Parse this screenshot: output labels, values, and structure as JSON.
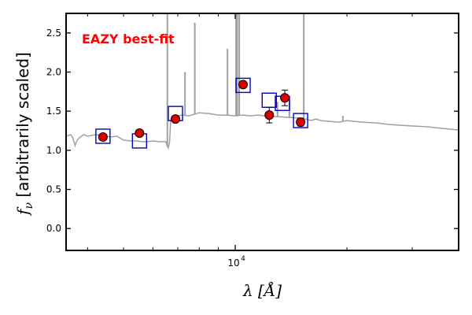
{
  "chart_data": {
    "type": "scatter",
    "title": "",
    "annotation": {
      "text": "EAZY best-fit",
      "color": "#ff0000"
    },
    "xlabel": {
      "main": "λ",
      "unit": "[Å]"
    },
    "ylabel": {
      "main": "f",
      "sub": "ν",
      "rest": " [arbitrarily scaled]"
    },
    "x_scale": "log",
    "xlim": [
      3500,
      40000
    ],
    "ylim": [
      -0.28,
      2.75
    ],
    "y_ticks": [
      0.0,
      0.5,
      1.0,
      1.5,
      2.0,
      2.5
    ],
    "y_tick_labels": [
      "0.0",
      "0.5",
      "1.0",
      "1.5",
      "2.0",
      "2.5"
    ],
    "x_ticks": [
      10000
    ],
    "x_tick_labels": [
      {
        "base": "10",
        "exp": "4"
      }
    ],
    "x_minor_ticks": [
      4000,
      5000,
      6000,
      7000,
      8000,
      9000,
      20000,
      30000,
      40000
    ],
    "grid": false,
    "colors": {
      "model": "#a0a0a0",
      "observed_fill": "#dd0000",
      "observed_edge": "#000000",
      "model_box": "#0000cc"
    },
    "model_sed": {
      "x": [
        3500,
        3600,
        3650,
        3700,
        3750,
        3800,
        3900,
        4000,
        4200,
        4400,
        4600,
        4800,
        5000,
        5200,
        5400,
        5600,
        5800,
        6000,
        6200,
        6400,
        6500,
        6550,
        6600,
        6650,
        6700,
        6800,
        7000,
        7200,
        7500,
        8000,
        8500,
        9000,
        9500,
        10000,
        10500,
        11000,
        11500,
        12000,
        13000,
        14000,
        15000,
        15500,
        16000,
        16500,
        17000,
        18000,
        19000,
        20000,
        22000,
        24000,
        26000,
        28000,
        30000,
        33000,
        36000,
        40000
      ],
      "y": [
        1.18,
        1.2,
        1.16,
        1.06,
        1.13,
        1.16,
        1.2,
        1.18,
        1.2,
        1.19,
        1.17,
        1.18,
        1.13,
        1.12,
        1.12,
        1.11,
        1.11,
        1.12,
        1.11,
        1.11,
        1.11,
        1.06,
        1.03,
        1.1,
        1.38,
        1.42,
        1.44,
        1.45,
        1.44,
        1.48,
        1.47,
        1.45,
        1.45,
        1.44,
        1.45,
        1.44,
        1.45,
        1.44,
        1.43,
        1.42,
        1.41,
        1.4,
        1.38,
        1.4,
        1.38,
        1.37,
        1.36,
        1.38,
        1.36,
        1.35,
        1.33,
        1.32,
        1.31,
        1.3,
        1.28,
        1.26
      ]
    },
    "emission_lines": [
      {
        "x": 6563,
        "ytop": 2.75
      },
      {
        "x": 7320,
        "ytop": 2.0
      },
      {
        "x": 7780,
        "ytop": 2.63
      },
      {
        "x": 9530,
        "ytop": 2.3
      },
      {
        "x": 10050,
        "ytop": 2.75
      },
      {
        "x": 10120,
        "ytop": 2.75
      },
      {
        "x": 10250,
        "ytop": 2.75
      },
      {
        "x": 13000,
        "ytop": 1.62
      },
      {
        "x": 14000,
        "ytop": 1.65
      },
      {
        "x": 15300,
        "ytop": 2.75
      },
      {
        "x": 19500,
        "ytop": 1.44
      }
    ],
    "observed": [
      {
        "x": 4400,
        "y": 1.17,
        "err": 0.03
      },
      {
        "x": 5520,
        "y": 1.22,
        "err": 0.03
      },
      {
        "x": 6900,
        "y": 1.4,
        "err": 0.03
      },
      {
        "x": 10500,
        "y": 1.84,
        "err": 0.04
      },
      {
        "x": 12350,
        "y": 1.45,
        "err": 0.1
      },
      {
        "x": 13600,
        "y": 1.67,
        "err": 0.1
      },
      {
        "x": 15000,
        "y": 1.36,
        "err": 0.05
      }
    ],
    "model_fluxes": [
      {
        "x": 4400,
        "y": 1.18
      },
      {
        "x": 5520,
        "y": 1.12
      },
      {
        "x": 6900,
        "y": 1.47
      },
      {
        "x": 10500,
        "y": 1.83
      },
      {
        "x": 12350,
        "y": 1.64
      },
      {
        "x": 13400,
        "y": 1.6
      },
      {
        "x": 15000,
        "y": 1.38
      }
    ]
  }
}
